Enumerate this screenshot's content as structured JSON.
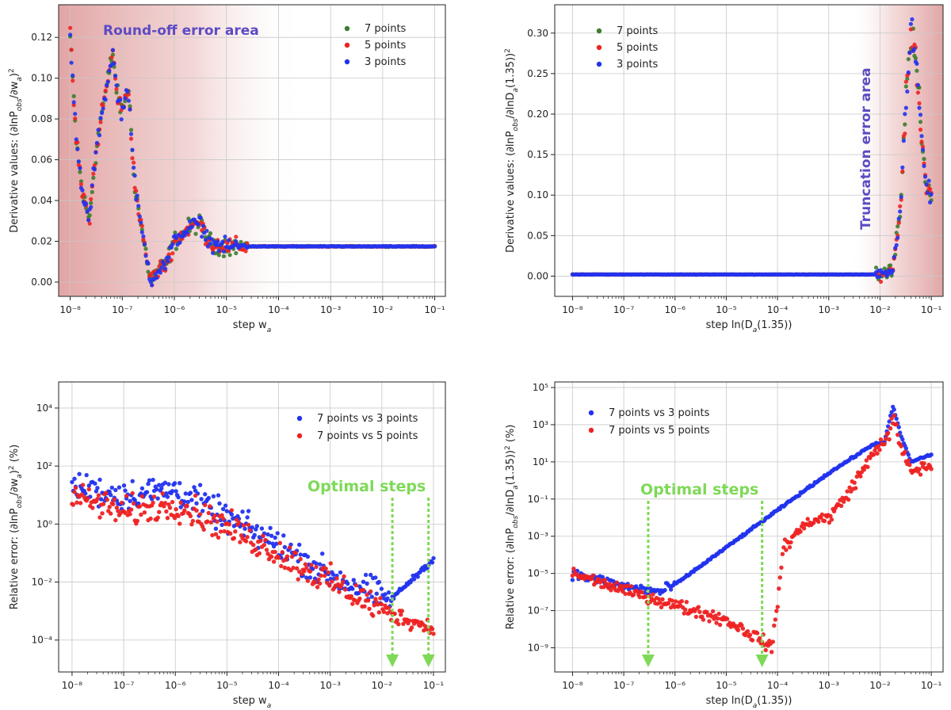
{
  "chart_data": [
    {
      "type": "scatter",
      "xscale": "log",
      "yscale": "linear",
      "xlim": [
        6e-09,
        0.16
      ],
      "ylim": [
        -0.007,
        0.136
      ],
      "xlabel": "step w_a",
      "ylabel": "Derivative values: (∂lnP_obs/∂w_a)^2",
      "xticks": [
        -8,
        -7,
        -6,
        -5,
        -4,
        -3,
        -2,
        -1
      ],
      "yticks": [
        0.0,
        0.02,
        0.04,
        0.06,
        0.08,
        0.1,
        0.12
      ],
      "ytick_labels": [
        "0.00",
        "0.02",
        "0.04",
        "0.06",
        "0.08",
        "0.10",
        "0.12"
      ],
      "annotation": "Round-off error area",
      "shade": {
        "from_x": 6e-09,
        "to_x": 0.0003,
        "side": "left"
      },
      "legend": {
        "position": "top-right",
        "entries": [
          "7 points",
          "5 points",
          "3 points"
        ]
      },
      "series": [
        {
          "name": "7 points",
          "color": "#3a7d2c"
        },
        {
          "name": "5 points",
          "color": "#ee2222"
        },
        {
          "name": "3 points",
          "color": "#2233ee"
        }
      ],
      "profile": [
        [
          1e-08,
          0.12
        ],
        [
          1.3e-08,
          0.07
        ],
        [
          1.7e-08,
          0.044
        ],
        [
          2.3e-08,
          0.03
        ],
        [
          3e-08,
          0.06
        ],
        [
          4e-08,
          0.083
        ],
        [
          5e-08,
          0.095
        ],
        [
          6.5e-08,
          0.113
        ],
        [
          8e-08,
          0.092
        ],
        [
          1e-07,
          0.083
        ],
        [
          1.3e-07,
          0.097
        ],
        [
          1.7e-07,
          0.05
        ],
        [
          2.2e-07,
          0.03
        ],
        [
          3.5e-07,
          0.001
        ],
        [
          5e-07,
          0.006
        ],
        [
          7e-07,
          0.009
        ],
        [
          1e-06,
          0.02
        ],
        [
          2e-06,
          0.027
        ],
        [
          3e-06,
          0.029
        ],
        [
          5e-06,
          0.019
        ],
        [
          1e-05,
          0.0175
        ],
        [
          0.1,
          0.0175
        ]
      ]
    },
    {
      "type": "scatter",
      "xscale": "log",
      "yscale": "linear",
      "xlim": [
        4.5e-09,
        0.17
      ],
      "ylim": [
        -0.025,
        0.335
      ],
      "xlabel": "step ln(D_a(1.35))",
      "ylabel": "Derivative values: (∂lnP_obs/∂lnD_a(1.35))^2",
      "xticks": [
        -8,
        -7,
        -6,
        -5,
        -4,
        -3,
        -2,
        -1
      ],
      "yticks": [
        0.0,
        0.05,
        0.1,
        0.15,
        0.2,
        0.25,
        0.3
      ],
      "ytick_labels": [
        "0.00",
        "0.05",
        "0.10",
        "0.15",
        "0.20",
        "0.25",
        "0.30"
      ],
      "annotation": "Truncation error area",
      "shade": {
        "from_x": 0.0025,
        "to_x": 0.17,
        "side": "right"
      },
      "legend": {
        "position": "top-left",
        "entries": [
          "7 points",
          "5 points",
          "3 points"
        ]
      },
      "series": [
        {
          "name": "7 points",
          "color": "#3a7d2c"
        },
        {
          "name": "5 points",
          "color": "#ee2222"
        },
        {
          "name": "3 points",
          "color": "#2233ee"
        }
      ],
      "profile": [
        [
          1e-08,
          0.002
        ],
        [
          0.012,
          0.002
        ],
        [
          0.018,
          0.012
        ],
        [
          0.025,
          0.08
        ],
        [
          0.032,
          0.22
        ],
        [
          0.04,
          0.3
        ],
        [
          0.05,
          0.27
        ],
        [
          0.065,
          0.17
        ],
        [
          0.08,
          0.11
        ],
        [
          0.1,
          0.1
        ]
      ]
    },
    {
      "type": "scatter",
      "xscale": "log",
      "yscale": "log",
      "xlim": [
        5.5e-09,
        0.17
      ],
      "ylim_exp": [
        -5.1,
        4.9
      ],
      "xlabel": "step w_a",
      "ylabel": "Relative error: (∂lnP_obs/∂w_a)^2 (%)",
      "xticks": [
        -8,
        -7,
        -6,
        -5,
        -4,
        -3,
        -2,
        -1
      ],
      "yticks": [
        4,
        2,
        0,
        -2,
        -4
      ],
      "annotation": "Optimal steps",
      "optimal_steps": [
        0.016,
        0.08
      ],
      "legend": {
        "position": "top-right",
        "entries": [
          "7 points vs 3 points",
          "7 points vs 5 points"
        ]
      },
      "series": [
        {
          "name": "7 points vs 3 points",
          "color": "#2233ee",
          "profile": [
            [
              1e-08,
              1.3
            ],
            [
              1e-07,
              1.0
            ],
            [
              1e-06,
              1.2
            ],
            [
              1e-05,
              0.2
            ],
            [
              0.0001,
              -0.7
            ],
            [
              0.001,
              -1.8
            ],
            [
              0.015,
              -2.6
            ],
            [
              0.1,
              -1.2
            ]
          ]
        },
        {
          "name": "7 points vs 5 points",
          "color": "#ee2222",
          "profile": [
            [
              1e-08,
              1.0
            ],
            [
              1e-07,
              0.4
            ],
            [
              1e-06,
              0.7
            ],
            [
              1e-05,
              -0.1
            ],
            [
              0.0001,
              -1.0
            ],
            [
              0.001,
              -2.0
            ],
            [
              0.015,
              -3.1
            ],
            [
              0.1,
              -3.6
            ]
          ]
        }
      ]
    },
    {
      "type": "scatter",
      "xscale": "log",
      "yscale": "log",
      "xlim": [
        4.5e-09,
        0.17
      ],
      "ylim_exp": [
        -10.3,
        5.3
      ],
      "xlabel": "step ln(D_a(1.35))",
      "ylabel": "Relative error: (∂lnP_obs/∂lnD_a(1.35))^2 (%)",
      "xticks": [
        -8,
        -7,
        -6,
        -5,
        -4,
        -3,
        -2,
        -1
      ],
      "yticks": [
        5,
        3,
        1,
        -1,
        -3,
        -5,
        -7,
        -9
      ],
      "annotation": "Optimal steps",
      "optimal_steps": [
        3e-07,
        5e-05
      ],
      "legend": {
        "position": "top-left",
        "entries": [
          "7 points vs 3 points",
          "7 points vs 5 points"
        ]
      },
      "series": [
        {
          "name": "7 points vs 3 points",
          "color": "#2233ee",
          "profile": [
            [
              1e-08,
              -5.0
            ],
            [
              1e-07,
              -5.7
            ],
            [
              5e-07,
              -6.0
            ],
            [
              1e-06,
              -5.6
            ],
            [
              0.001,
              0.4
            ],
            [
              0.008,
              2.0
            ],
            [
              0.012,
              2.0
            ],
            [
              0.018,
              4.0
            ],
            [
              0.025,
              2.5
            ],
            [
              0.04,
              1.0
            ],
            [
              0.1,
              1.4
            ]
          ]
        },
        {
          "name": "7 points vs 5 points",
          "color": "#ee2222",
          "profile": [
            [
              1e-08,
              -5.0
            ],
            [
              1e-07,
              -5.9
            ],
            [
              1e-06,
              -6.7
            ],
            [
              1e-05,
              -7.5
            ],
            [
              5e-05,
              -8.6
            ],
            [
              8e-05,
              -9.0
            ],
            [
              0.00013,
              -3.6
            ],
            [
              0.0004,
              -2.2
            ],
            [
              0.001,
              -2.0
            ],
            [
              0.002,
              -1.0
            ],
            [
              0.01,
              2.0
            ],
            [
              0.015,
              2.3
            ],
            [
              0.018,
              3.5
            ],
            [
              0.025,
              1.8
            ],
            [
              0.04,
              0.5
            ],
            [
              0.1,
              0.8
            ]
          ]
        }
      ]
    }
  ]
}
